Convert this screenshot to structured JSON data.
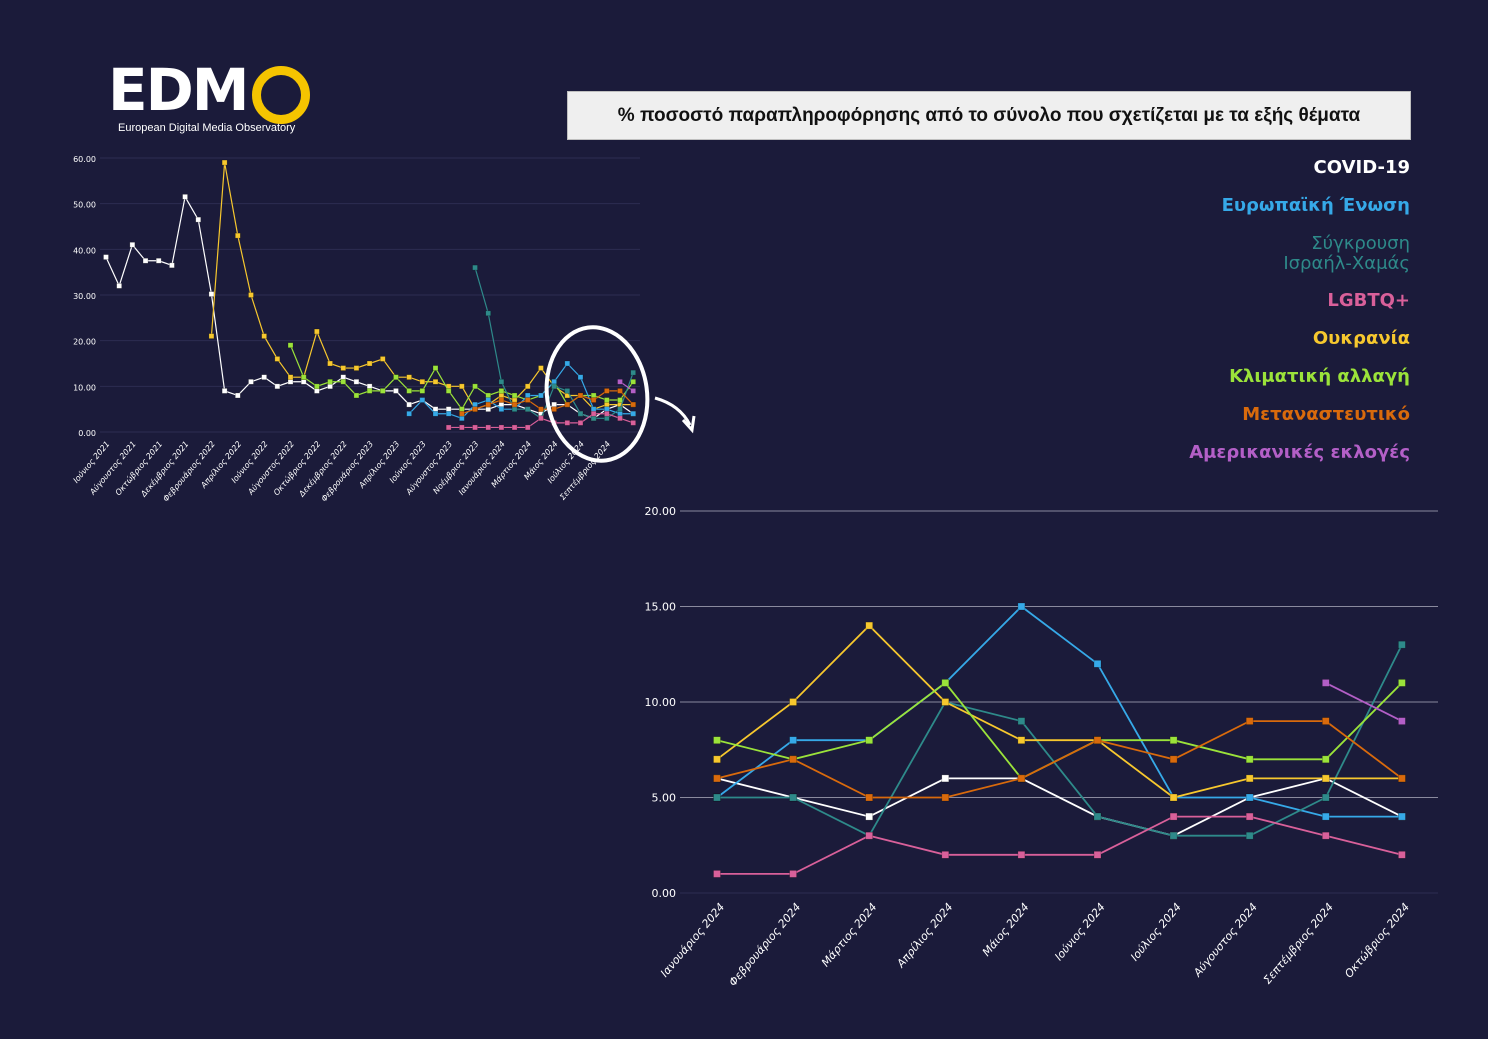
{
  "logo": {
    "word": "EDM",
    "subtitle": "European Digital Media Observatory"
  },
  "title": "% ποσοστό παραπληροφόρησης από το σύνολο που σχετίζεται με τα εξής θέματα",
  "legend": [
    {
      "label": "COVID-19",
      "color": "#ffffff"
    },
    {
      "label": "Ευρωπαϊκή Ένωση",
      "color": "#36a9e8"
    },
    {
      "label": "Σύγκρουση Ισραήλ-Χαμάς",
      "color": "#2e8a8a"
    },
    {
      "label": "LGBTQ+",
      "color": "#d9609a"
    },
    {
      "label": "Ουκρανία",
      "color": "#f7c82e"
    },
    {
      "label": "Κλιματική αλλαγή",
      "color": "#9be33a"
    },
    {
      "label": "Μεταναστευτικό",
      "color": "#d96a0c"
    },
    {
      "label": "Αμερικανικές εκλογές",
      "color": "#b35fc7"
    }
  ],
  "chart_data": [
    {
      "type": "line",
      "title": "",
      "xlabel": "",
      "ylabel": "",
      "ylim": [
        0,
        60
      ],
      "yticks": [
        "0.00",
        "10.00",
        "20.00",
        "30.00",
        "40.00",
        "50.00",
        "60.00"
      ],
      "grid": true,
      "x": [
        "Ιούνιος 2021",
        "Ιούλιος 2021",
        "Αύγουστος 2021",
        "Σεπτέμβριος 2021",
        "Οκτώβριος 2021",
        "Νοέμβριος 2021",
        "Δεκέμβριος 2021",
        "Ιανουάριος 2022",
        "Φεβρουάριος 2022",
        "Μάρτιος 2022",
        "Απρίλιος 2022",
        "Μάιος 2022",
        "Ιούνιος 2022",
        "Ιούλιος 2022",
        "Αύγουστος 2022",
        "Σεπτέμβριος 2022",
        "Οκτώβριος 2022",
        "Νοέμβριος 2022",
        "Δεκέμβριος 2022",
        "Ιανουάριος 2023",
        "Φεβρουάριος 2023",
        "Μάρτιος 2023",
        "Απρίλιος 2023",
        "Μάιος 2023",
        "Ιούνιος 2023",
        "Ιούλιος 2023",
        "Αύγουστος 2023",
        "Σεπτέμβριος 2023",
        "Οκτώβριος 2023",
        "Νοέμβριος 2023",
        "Δεκέμβριος 2023",
        "Ιανουάριος 2024",
        "Φεβρουάριος 2024",
        "Μάρτιος 2024",
        "Απρίλιος 2024",
        "Μάιος 2024",
        "Ιούνιος 2024",
        "Ιούλιος 2024",
        "Αύγουστος 2024",
        "Σεπτέμβριος 2024",
        "Οκτώβριος 2024"
      ],
      "xtick_labels": [
        "Ιούνιος 2021",
        "Αύγουστος 2021",
        "Οκτώβριος 2021",
        "Δεκέμβριος 2021",
        "Φεβρουάριος 2022",
        "Απρίλιος 2022",
        "Ιούνιος 2022",
        "Αύγουστος 2022",
        "Οκτώβριος 2022",
        "Δεκέμβριος 2022",
        "Φεβρουάριος 2023",
        "Απρίλιος 2023",
        "Ιούνιος 2023",
        "Αύγουστος 2023",
        "Νοέμβριος 2023",
        "Ιανουάριος 2024",
        "Μάρτιος 2024",
        "Μάιος 2024",
        "Ιούλιος 2024",
        "Σεπτέμβριος 2024"
      ],
      "series": [
        {
          "name": "COVID-19",
          "color": "#ffffff",
          "values": [
            38.3,
            32,
            41,
            37.5,
            37.5,
            36.5,
            51.5,
            46.5,
            30.2,
            9,
            8,
            11,
            12,
            10,
            11,
            11,
            9,
            10,
            12,
            11,
            10,
            9,
            9,
            6,
            7,
            5,
            5,
            5,
            5,
            5,
            6,
            6,
            5,
            4,
            6,
            6,
            4,
            3,
            5,
            6,
            4
          ]
        },
        {
          "name": "Ουκρανία",
          "color": "#f7c82e",
          "values": [
            null,
            null,
            null,
            null,
            null,
            null,
            null,
            null,
            21,
            59,
            43,
            30,
            21,
            16,
            12,
            12,
            22,
            15,
            14,
            14,
            15,
            16,
            12,
            12,
            11,
            11,
            10,
            10,
            5,
            6,
            8,
            7,
            10,
            14,
            10,
            8,
            8,
            5,
            6,
            6,
            6
          ]
        },
        {
          "name": "Κλιματική αλλαγή",
          "color": "#9be33a",
          "values": [
            null,
            null,
            null,
            null,
            null,
            null,
            null,
            null,
            null,
            null,
            null,
            null,
            null,
            null,
            19,
            12,
            10,
            11,
            11,
            8,
            9,
            9,
            12,
            9,
            9,
            14,
            9,
            5,
            10,
            8,
            9,
            8,
            7,
            8,
            11,
            6,
            8,
            8,
            7,
            7,
            11
          ]
        },
        {
          "name": "Ευρωπαϊκή Ένωση",
          "color": "#36a9e8",
          "values": [
            null,
            null,
            null,
            null,
            null,
            null,
            null,
            null,
            null,
            null,
            null,
            null,
            null,
            null,
            null,
            null,
            null,
            null,
            null,
            null,
            null,
            null,
            null,
            4,
            7,
            4,
            4,
            3,
            6,
            7,
            5,
            5,
            8,
            8,
            11,
            15,
            12,
            5,
            5,
            4,
            4
          ]
        },
        {
          "name": "Σύγκρουση Ισραήλ-Χαμάς",
          "color": "#2e8a8a",
          "values": [
            null,
            null,
            null,
            null,
            null,
            null,
            null,
            null,
            null,
            null,
            null,
            null,
            null,
            null,
            null,
            null,
            null,
            null,
            null,
            null,
            null,
            null,
            null,
            null,
            null,
            null,
            null,
            null,
            36,
            26,
            11,
            5,
            5,
            3,
            10,
            9,
            4,
            3,
            3,
            5,
            13
          ]
        },
        {
          "name": "Μεταναστευτικό",
          "color": "#d96a0c",
          "values": [
            null,
            null,
            null,
            null,
            null,
            null,
            null,
            null,
            null,
            null,
            null,
            null,
            null,
            null,
            null,
            null,
            null,
            null,
            null,
            null,
            null,
            null,
            null,
            null,
            null,
            null,
            null,
            4,
            5,
            6,
            7,
            6,
            7,
            5,
            5,
            6,
            8,
            7,
            9,
            9,
            6
          ]
        },
        {
          "name": "LGBTQ+",
          "color": "#d9609a",
          "values": [
            null,
            null,
            null,
            null,
            null,
            null,
            null,
            null,
            null,
            null,
            null,
            null,
            null,
            null,
            null,
            null,
            null,
            null,
            null,
            null,
            null,
            null,
            null,
            null,
            null,
            null,
            1,
            1,
            1,
            1,
            1,
            1,
            1,
            3,
            2,
            2,
            2,
            4,
            4,
            3,
            2
          ]
        },
        {
          "name": "Αμερικανικές εκλογές",
          "color": "#b35fc7",
          "values": [
            null,
            null,
            null,
            null,
            null,
            null,
            null,
            null,
            null,
            null,
            null,
            null,
            null,
            null,
            null,
            null,
            null,
            null,
            null,
            null,
            null,
            null,
            null,
            null,
            null,
            null,
            null,
            null,
            null,
            null,
            null,
            null,
            null,
            null,
            null,
            null,
            null,
            null,
            null,
            11,
            9
          ]
        }
      ]
    },
    {
      "type": "line",
      "title": "",
      "xlabel": "",
      "ylabel": "",
      "ylim": [
        0,
        20
      ],
      "yticks": [
        "0.00",
        "5.00",
        "10.00",
        "15.00",
        "20.00"
      ],
      "grid": true,
      "x": [
        "Ιανουάριος 2024",
        "Φεβρουάριος 2024",
        "Μάρτιος 2024",
        "Απρίλιος 2024",
        "Μάιος 2024",
        "Ιούνιος 2024",
        "Ιούλιος 2024",
        "Αύγουστος 2024",
        "Σεπτέμβριος 2024",
        "Οκτώβριος 2024"
      ],
      "series": [
        {
          "name": "COVID-19",
          "color": "#ffffff",
          "values": [
            6,
            5,
            4,
            6,
            6,
            4,
            3,
            5,
            6,
            4
          ]
        },
        {
          "name": "Ευρωπαϊκή Ένωση",
          "color": "#36a9e8",
          "values": [
            5,
            8,
            8,
            11,
            15,
            12,
            5,
            5,
            4,
            4
          ]
        },
        {
          "name": "Σύγκρουση Ισραήλ-Χαμάς",
          "color": "#2e8a8a",
          "values": [
            5,
            5,
            3,
            10,
            9,
            4,
            3,
            3,
            5,
            13
          ]
        },
        {
          "name": "LGBTQ+",
          "color": "#d9609a",
          "values": [
            1,
            1,
            3,
            2,
            2,
            2,
            4,
            4,
            3,
            2
          ]
        },
        {
          "name": "Ουκρανία",
          "color": "#f7c82e",
          "values": [
            7,
            10,
            14,
            10,
            8,
            8,
            5,
            6,
            6,
            6
          ]
        },
        {
          "name": "Κλιματική αλλαγή",
          "color": "#9be33a",
          "values": [
            8,
            7,
            8,
            11,
            6,
            8,
            8,
            7,
            7,
            11
          ]
        },
        {
          "name": "Μεταναστευτικό",
          "color": "#d96a0c",
          "values": [
            6,
            7,
            5,
            5,
            6,
            8,
            7,
            9,
            9,
            6
          ]
        },
        {
          "name": "Αμερικανικές εκλογές",
          "color": "#b35fc7",
          "values": [
            null,
            null,
            null,
            null,
            null,
            null,
            null,
            null,
            11,
            9
          ]
        }
      ]
    }
  ]
}
